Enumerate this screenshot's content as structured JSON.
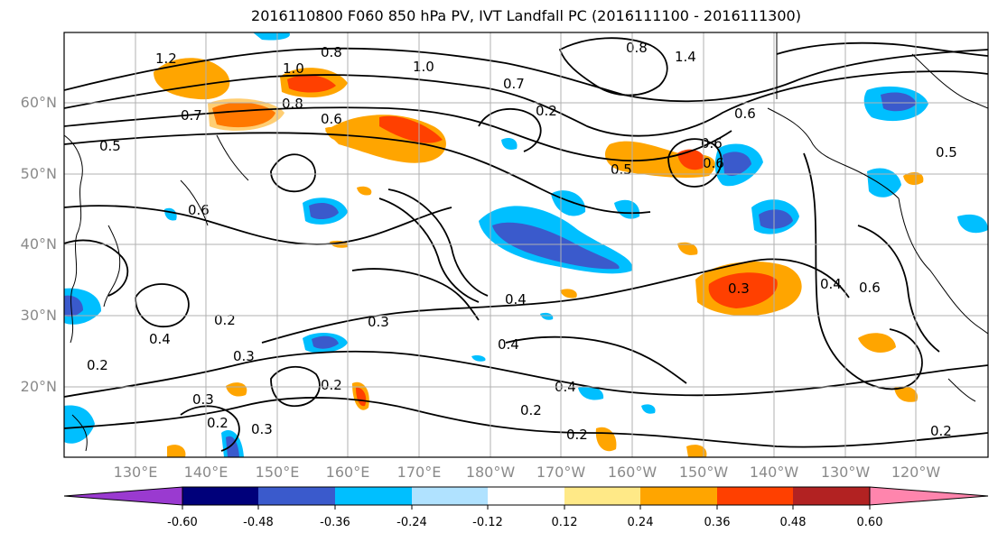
{
  "title": "2016110800 F060 850 hPa PV, IVT Landfall PC (2016111100 - 2016111300)",
  "lat_labels": [
    "60°N",
    "50°N",
    "40°N",
    "30°N",
    "20°N"
  ],
  "lon_labels": [
    "130°E",
    "140°E",
    "150°E",
    "160°E",
    "170°E",
    "180°W",
    "170°W",
    "160°W",
    "150°W",
    "140°W",
    "130°W",
    "120°W"
  ],
  "contour_labels": [
    "1.2",
    "1.0",
    "0.8",
    "1.0",
    "0.8",
    "1.4",
    "0.7",
    "0.2",
    "0.7",
    "0.8",
    "0.6",
    "0.6",
    "0.5",
    "0.5",
    "0.6",
    "0.5",
    "0.6",
    "0.4",
    "0.6",
    "0.4",
    "0.3",
    "0.2",
    "0.4",
    "0.3",
    "0.3",
    "0.4",
    "0.3",
    "0.2",
    "0.2",
    "0.2",
    "0.2",
    "0.4",
    "0.3",
    "0.2",
    "0.2",
    "0.6"
  ],
  "colorbar": {
    "levels": [
      "-0.60",
      "-0.48",
      "-0.36",
      "-0.24",
      "-0.12",
      "0.12",
      "0.24",
      "0.36",
      "0.48",
      "0.60"
    ],
    "colors": [
      "#9a3ad0",
      "#00007a",
      "#3a5acc",
      "#00bfff",
      "#b0e2ff",
      "#ffffff",
      "#ffe987",
      "#ffa500",
      "#ff4000",
      "#b22222",
      "#ff85ad"
    ]
  }
}
